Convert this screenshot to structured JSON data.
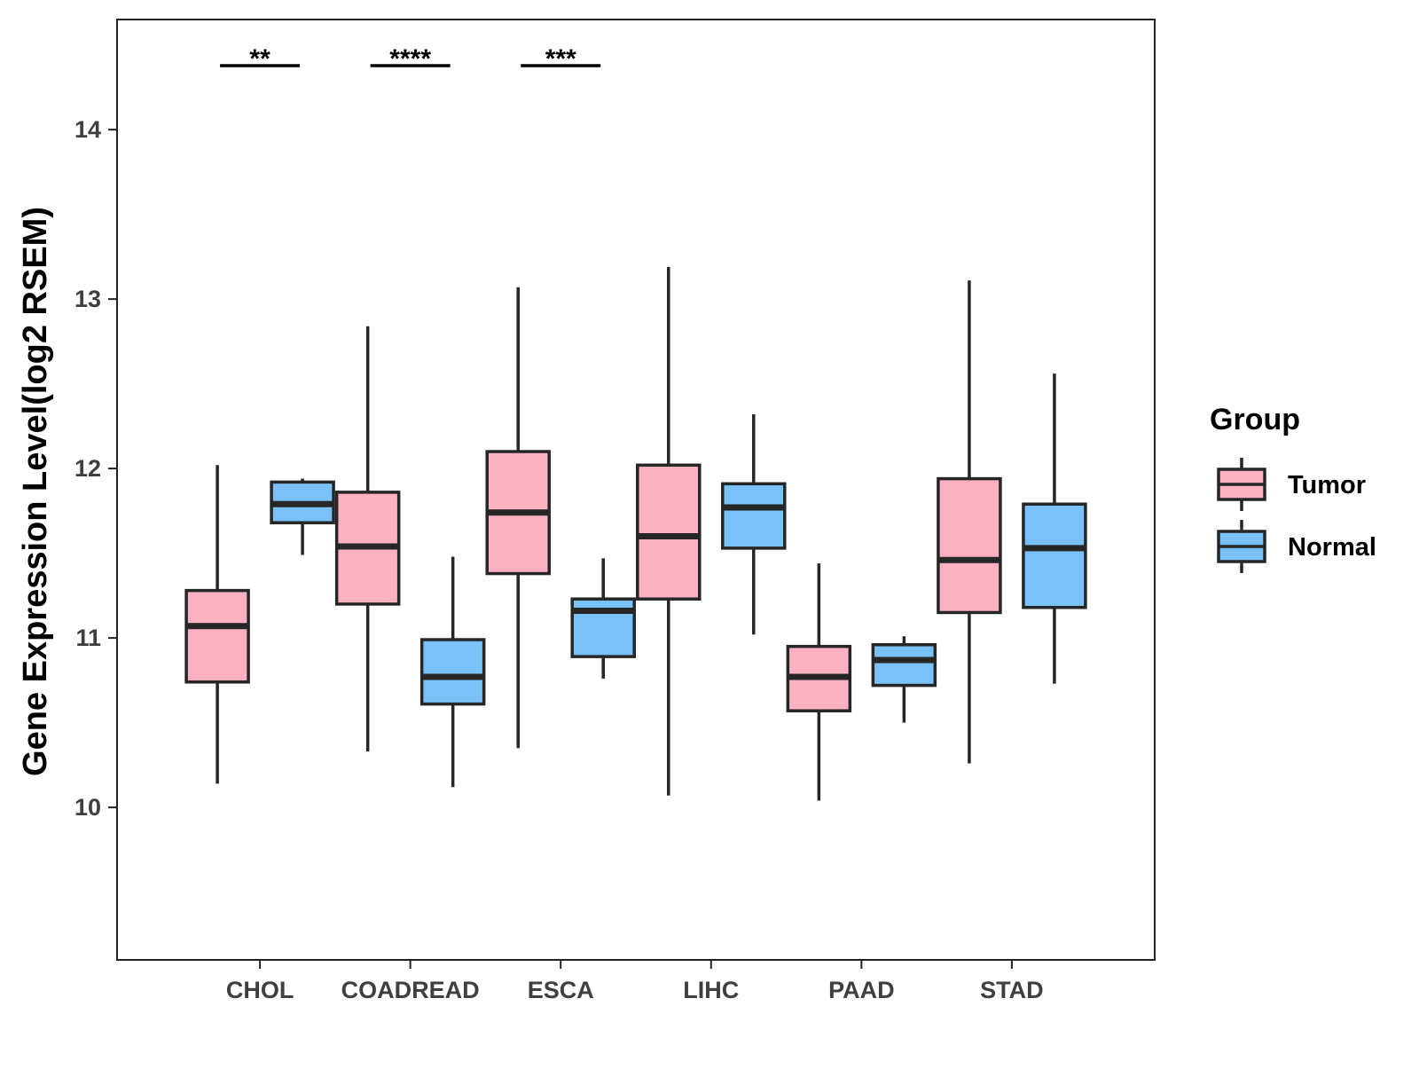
{
  "chart_data": {
    "type": "boxplot",
    "title": "",
    "xlabel": "",
    "ylabel": "Gene Expression Level(log2 RSEM)",
    "ylim": [
      9.1,
      14.65
    ],
    "yticks": [
      10,
      11,
      12,
      13,
      14
    ],
    "grid": false,
    "legend": {
      "title": "Group",
      "placement": "right",
      "entries": [
        {
          "label": "Tumor",
          "color": "#FBB1C2"
        },
        {
          "label": "Normal",
          "color": "#79C1F6"
        }
      ]
    },
    "categories": [
      "CHOL",
      "COADREAD",
      "ESCA",
      "LIHC",
      "PAAD",
      "STAD"
    ],
    "series": [
      {
        "name": "Tumor",
        "color": "#FBB1C2",
        "boxes": [
          {
            "min": 10.14,
            "q1": 10.74,
            "median": 11.07,
            "q3": 11.28,
            "max": 12.02
          },
          {
            "min": 10.33,
            "q1": 11.2,
            "median": 11.54,
            "q3": 11.86,
            "max": 12.84
          },
          {
            "min": 10.35,
            "q1": 11.38,
            "median": 11.74,
            "q3": 12.1,
            "max": 13.07
          },
          {
            "min": 10.07,
            "q1": 11.23,
            "median": 11.6,
            "q3": 12.02,
            "max": 13.19
          },
          {
            "min": 10.04,
            "q1": 10.57,
            "median": 10.77,
            "q3": 10.95,
            "max": 11.44
          },
          {
            "min": 10.26,
            "q1": 11.15,
            "median": 11.46,
            "q3": 11.94,
            "max": 13.11
          }
        ]
      },
      {
        "name": "Normal",
        "color": "#79C1F6",
        "boxes": [
          {
            "min": 11.49,
            "q1": 11.68,
            "median": 11.79,
            "q3": 11.92,
            "max": 11.94
          },
          {
            "min": 10.12,
            "q1": 10.61,
            "median": 10.77,
            "q3": 10.99,
            "max": 11.48
          },
          {
            "min": 10.76,
            "q1": 10.89,
            "median": 11.16,
            "q3": 11.23,
            "max": 11.47
          },
          {
            "min": 11.02,
            "q1": 11.53,
            "median": 11.77,
            "q3": 11.91,
            "max": 12.32
          },
          {
            "min": 10.5,
            "q1": 10.72,
            "median": 10.87,
            "q3": 10.96,
            "max": 11.01
          },
          {
            "min": 10.73,
            "q1": 11.18,
            "median": 11.53,
            "q3": 11.79,
            "max": 12.56
          }
        ]
      }
    ],
    "significance": [
      {
        "category": "CHOL",
        "label": "**"
      },
      {
        "category": "COADREAD",
        "label": "****"
      },
      {
        "category": "ESCA",
        "label": "***"
      }
    ]
  }
}
